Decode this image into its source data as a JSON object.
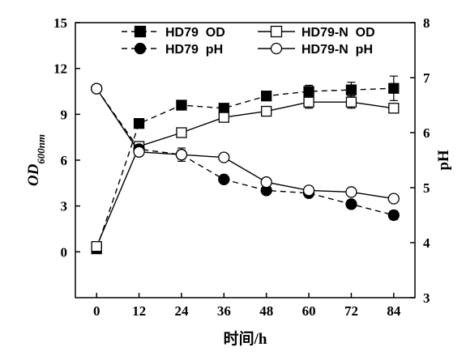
{
  "chart_data": {
    "type": "line",
    "x": [
      0,
      12,
      24,
      36,
      48,
      60,
      72,
      84
    ],
    "x_ticks": [
      "0",
      "12",
      "24",
      "36",
      "48",
      "60",
      "72",
      "84"
    ],
    "xlim": [
      -6,
      90
    ],
    "ylim_left": [
      -3,
      15
    ],
    "ylim_right": [
      3,
      8
    ],
    "y_ticks_left": [
      "0",
      "3",
      "6",
      "9",
      "12",
      "15"
    ],
    "y_ticks_right": [
      "3",
      "4",
      "5",
      "6",
      "7",
      "8"
    ],
    "xlabel": "时间/h",
    "ylabel_left": "OD",
    "ylabel_left_sub": "600nm",
    "ylabel_right": "pH",
    "legend_placement": "top",
    "series": [
      {
        "name": "HD79  OD",
        "axis": "left",
        "style": "dashed",
        "marker": "filled-square",
        "values": [
          0.2,
          8.4,
          9.6,
          9.4,
          10.2,
          10.5,
          10.6,
          10.7
        ],
        "errors": [
          0.1,
          0.2,
          0.2,
          0.2,
          0.2,
          0.4,
          0.5,
          0.8
        ]
      },
      {
        "name": "HD79-N  OD",
        "axis": "left",
        "style": "solid",
        "marker": "open-square",
        "values": [
          0.35,
          6.9,
          7.8,
          8.8,
          9.2,
          9.8,
          9.8,
          9.4
        ],
        "errors": [
          0.1,
          0.2,
          0.2,
          0.3,
          0.3,
          0.4,
          0.4,
          0.3
        ]
      },
      {
        "name": "HD79  pH",
        "axis": "right",
        "style": "dashed",
        "marker": "filled-circle",
        "values": [
          6.8,
          5.7,
          5.6,
          5.15,
          4.95,
          4.9,
          4.7,
          4.5
        ],
        "errors": [
          0.03,
          0.05,
          0.08,
          0.05,
          0.05,
          0.05,
          0.07,
          0.08
        ]
      },
      {
        "name": "HD79-N  pH",
        "axis": "right",
        "style": "solid",
        "marker": "open-circle",
        "values": [
          6.8,
          5.65,
          5.6,
          5.55,
          5.1,
          4.95,
          4.92,
          4.8
        ],
        "errors": [
          0.03,
          0.05,
          0.12,
          0.05,
          0.05,
          0.05,
          0.05,
          0.05
        ]
      }
    ]
  }
}
